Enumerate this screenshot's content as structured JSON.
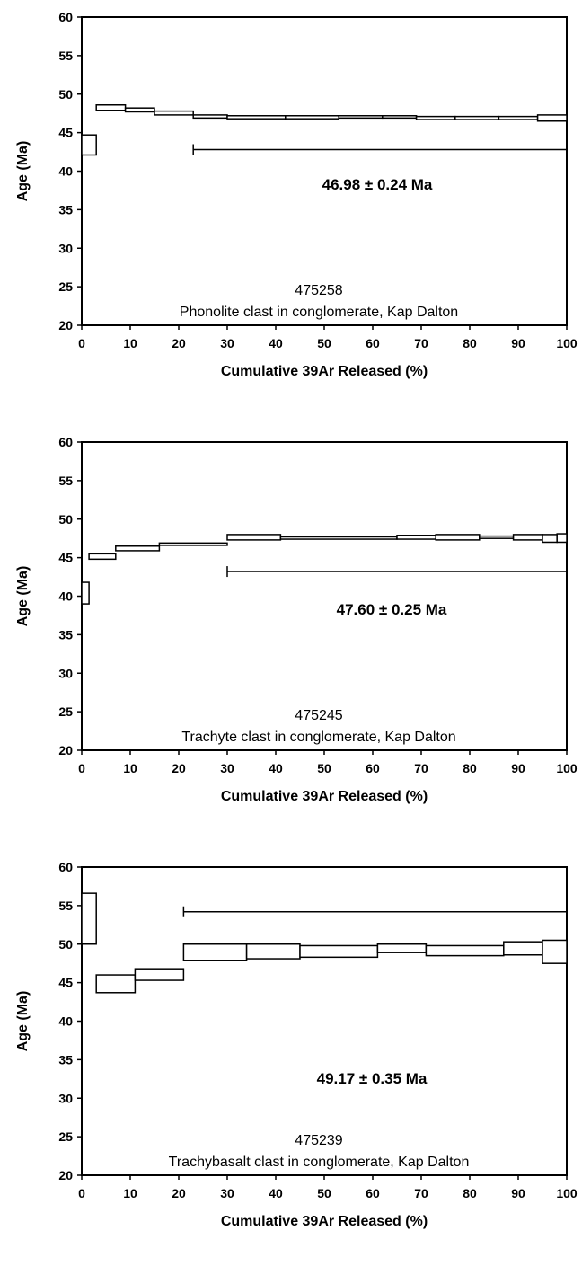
{
  "chart_data": [
    {
      "type": "step-plot",
      "xlabel": "Cumulative 39Ar Released (%)",
      "ylabel": "Age (Ma)",
      "xlim": [
        0,
        100
      ],
      "ylim": [
        20,
        60
      ],
      "xticks": [
        0,
        10,
        20,
        30,
        40,
        50,
        60,
        70,
        80,
        90,
        100
      ],
      "yticks": [
        20,
        25,
        30,
        35,
        40,
        45,
        50,
        55,
        60
      ],
      "steps": [
        {
          "x0": 0,
          "x1": 3,
          "y_low": 42.1,
          "y_high": 44.7
        },
        {
          "x0": 3,
          "x1": 9,
          "y_low": 47.9,
          "y_high": 48.6
        },
        {
          "x0": 9,
          "x1": 15,
          "y_low": 47.7,
          "y_high": 48.2
        },
        {
          "x0": 15,
          "x1": 23,
          "y_low": 47.3,
          "y_high": 47.8
        },
        {
          "x0": 23,
          "x1": 30,
          "y_low": 46.9,
          "y_high": 47.3
        },
        {
          "x0": 30,
          "x1": 42,
          "y_low": 46.8,
          "y_high": 47.2
        },
        {
          "x0": 42,
          "x1": 53,
          "y_low": 46.8,
          "y_high": 47.2
        },
        {
          "x0": 53,
          "x1": 62,
          "y_low": 46.9,
          "y_high": 47.2
        },
        {
          "x0": 62,
          "x1": 69,
          "y_low": 46.9,
          "y_high": 47.2
        },
        {
          "x0": 69,
          "x1": 77,
          "y_low": 46.7,
          "y_high": 47.1
        },
        {
          "x0": 77,
          "x1": 86,
          "y_low": 46.7,
          "y_high": 47.1
        },
        {
          "x0": 86,
          "x1": 94,
          "y_low": 46.7,
          "y_high": 47.1
        },
        {
          "x0": 94,
          "x1": 100,
          "y_low": 46.5,
          "y_high": 47.3
        }
      ],
      "plateau": {
        "x_start": 23,
        "x_end": 100,
        "y": 42.8,
        "label": "46.98 ± 0.24 Ma"
      },
      "sample_id": "475258",
      "sample_description": "Phonolite clast in conglomerate, Kap Dalton"
    },
    {
      "type": "step-plot",
      "xlabel": "Cumulative 39Ar Released (%)",
      "ylabel": "Age (Ma)",
      "xlim": [
        0,
        100
      ],
      "ylim": [
        20,
        60
      ],
      "xticks": [
        0,
        10,
        20,
        30,
        40,
        50,
        60,
        70,
        80,
        90,
        100
      ],
      "yticks": [
        20,
        25,
        30,
        35,
        40,
        45,
        50,
        55,
        60
      ],
      "steps": [
        {
          "x0": 0,
          "x1": 1.5,
          "y_low": 39.0,
          "y_high": 41.8
        },
        {
          "x0": 1.5,
          "x1": 7,
          "y_low": 44.8,
          "y_high": 45.5
        },
        {
          "x0": 7,
          "x1": 16,
          "y_low": 45.9,
          "y_high": 46.5
        },
        {
          "x0": 16,
          "x1": 30,
          "y_low": 46.6,
          "y_high": 46.9
        },
        {
          "x0": 30,
          "x1": 41,
          "y_low": 47.3,
          "y_high": 48.0
        },
        {
          "x0": 41,
          "x1": 65,
          "y_low": 47.4,
          "y_high": 47.7
        },
        {
          "x0": 65,
          "x1": 73,
          "y_low": 47.4,
          "y_high": 47.9
        },
        {
          "x0": 73,
          "x1": 82,
          "y_low": 47.3,
          "y_high": 48.0
        },
        {
          "x0": 82,
          "x1": 89,
          "y_low": 47.5,
          "y_high": 47.8
        },
        {
          "x0": 89,
          "x1": 95,
          "y_low": 47.3,
          "y_high": 48.0
        },
        {
          "x0": 95,
          "x1": 98,
          "y_low": 47.0,
          "y_high": 48.0
        },
        {
          "x0": 98,
          "x1": 100,
          "y_low": 47.0,
          "y_high": 48.1
        }
      ],
      "plateau": {
        "x_start": 30,
        "x_end": 100,
        "y": 43.2,
        "label": "47.60 ± 0.25 Ma"
      },
      "sample_id": "475245",
      "sample_description": "Trachyte clast in conglomerate, Kap Dalton"
    },
    {
      "type": "step-plot",
      "xlabel": "Cumulative 39Ar Released (%)",
      "ylabel": "Age (Ma)",
      "xlim": [
        0,
        100
      ],
      "ylim": [
        20,
        60
      ],
      "xticks": [
        0,
        10,
        20,
        30,
        40,
        50,
        60,
        70,
        80,
        90,
        100
      ],
      "yticks": [
        20,
        25,
        30,
        35,
        40,
        45,
        50,
        55,
        60
      ],
      "steps": [
        {
          "x0": 0,
          "x1": 3,
          "y_low": 50.0,
          "y_high": 56.6
        },
        {
          "x0": 3,
          "x1": 11,
          "y_low": 43.7,
          "y_high": 46.0
        },
        {
          "x0": 11,
          "x1": 21,
          "y_low": 45.3,
          "y_high": 46.8
        },
        {
          "x0": 21,
          "x1": 34,
          "y_low": 47.9,
          "y_high": 50.0
        },
        {
          "x0": 34,
          "x1": 45,
          "y_low": 48.1,
          "y_high": 50.0
        },
        {
          "x0": 45,
          "x1": 61,
          "y_low": 48.3,
          "y_high": 49.8
        },
        {
          "x0": 61,
          "x1": 71,
          "y_low": 48.9,
          "y_high": 50.0
        },
        {
          "x0": 71,
          "x1": 87,
          "y_low": 48.5,
          "y_high": 49.8
        },
        {
          "x0": 87,
          "x1": 95,
          "y_low": 48.6,
          "y_high": 50.3
        },
        {
          "x0": 95,
          "x1": 100,
          "y_low": 47.5,
          "y_high": 50.5
        }
      ],
      "plateau": {
        "x_start": 21,
        "x_end": 100,
        "y": 54.2,
        "label": "49.17 ± 0.35 Ma"
      },
      "sample_id": "475239",
      "sample_description": "Trachybasalt clast in conglomerate, Kap Dalton"
    }
  ]
}
